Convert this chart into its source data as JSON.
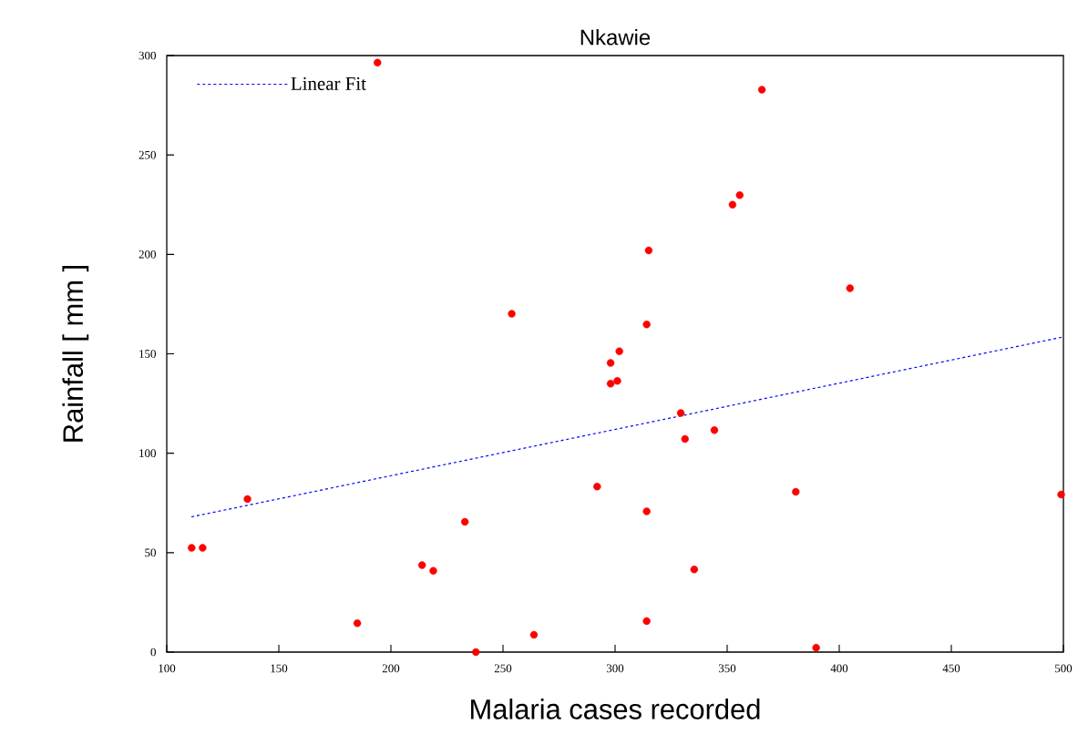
{
  "chart_data": {
    "type": "scatter",
    "title": "Nkawie",
    "xlabel": "Malaria cases recorded",
    "ylabel": "Rainfall [ mm ]",
    "xlim": [
      100,
      500
    ],
    "ylim": [
      0,
      300
    ],
    "xticks": [
      100,
      150,
      200,
      250,
      300,
      350,
      400,
      450,
      500
    ],
    "yticks": [
      0,
      50,
      100,
      150,
      200,
      250,
      300
    ],
    "legend": "top left",
    "series": [
      {
        "color": "#ff0000",
        "marker": "circle",
        "x": [
          111.1,
          116.0,
          136.0,
          185.0,
          194.0,
          213.9,
          218.9,
          233.0,
          237.9,
          253.9,
          263.8,
          292.0,
          298.0,
          301.9,
          298.0,
          301.0,
          314.1,
          315.0,
          314.1,
          314.1,
          329.3,
          331.2,
          344.3,
          335.3,
          352.4,
          355.6,
          365.5,
          380.6,
          389.7,
          404.8,
          499.0
        ],
        "values": [
          52.4,
          52.4,
          77.0,
          14.5,
          296.4,
          43.7,
          40.9,
          65.5,
          0,
          170.1,
          8.7,
          83.2,
          145.4,
          151.3,
          135.0,
          136.4,
          164.8,
          202.0,
          70.8,
          15.6,
          120.2,
          107.2,
          111.6,
          41.6,
          225.0,
          229.8,
          282.8,
          80.6,
          2.2,
          183.0,
          79.2
        ]
      },
      {
        "type": "line",
        "name": "Linear Fit",
        "color": "#0000ff",
        "line_style": "dotted",
        "marker": "none",
        "x": [
          111,
          500
        ],
        "values": [
          68,
          158.5
        ]
      }
    ]
  }
}
